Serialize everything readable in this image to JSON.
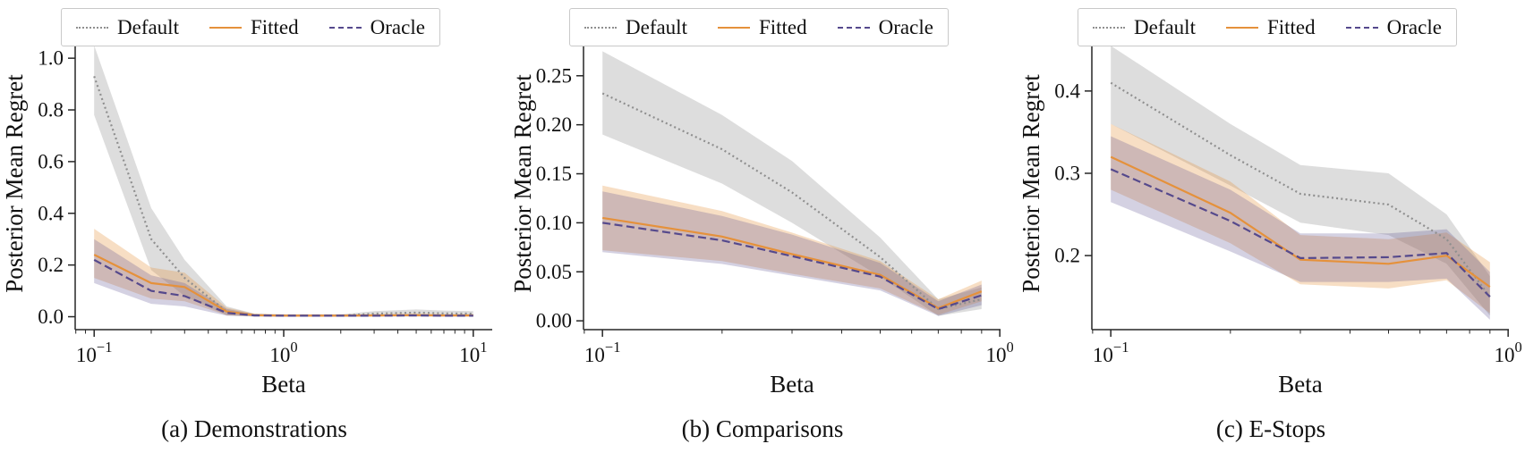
{
  "figure": {
    "background": "#ffffff",
    "spine_color": "#262626",
    "legend_entries": [
      "Default",
      "Fitted",
      "Oracle"
    ]
  },
  "chart_data": [
    {
      "type": "line",
      "title": "(a) Demonstrations",
      "xlabel": "Beta",
      "ylabel": "Posterior Mean Regret",
      "xscale": "log",
      "xlim": [
        0.0794,
        12.59
      ],
      "ylim": [
        -0.05,
        1.08
      ],
      "xticks": [
        {
          "value": 0.1,
          "base": "10",
          "exp": "−1",
          "label": "10^-1"
        },
        {
          "value": 1,
          "base": "10",
          "exp": "0",
          "label": "10^0"
        },
        {
          "value": 10,
          "base": "10",
          "exp": "1",
          "label": "10^1"
        }
      ],
      "yticks": [
        0.0,
        0.2,
        0.4,
        0.6,
        0.8,
        1.0
      ],
      "ytick_labels": [
        "0.0",
        "0.2",
        "0.4",
        "0.6",
        "0.8",
        "1.0"
      ],
      "x": [
        0.1,
        0.2,
        0.3,
        0.5,
        0.7,
        1,
        2,
        3,
        5,
        7,
        10
      ],
      "series": [
        {
          "name": "Default",
          "style": "dotted",
          "color": "#8f8f8f",
          "band_opacity": 0.3,
          "values": [
            0.93,
            0.3,
            0.15,
            0.02,
            0.006,
            0.004,
            0.004,
            0.012,
            0.016,
            0.013,
            0.012
          ],
          "lower": [
            0.78,
            0.18,
            0.08,
            0.005,
            0.001,
            0.001,
            0.001,
            0.004,
            0.006,
            0.004,
            0.004
          ],
          "upper": [
            1.05,
            0.42,
            0.22,
            0.04,
            0.012,
            0.009,
            0.009,
            0.022,
            0.028,
            0.024,
            0.022
          ]
        },
        {
          "name": "Fitted",
          "style": "solid",
          "color": "#e5913b",
          "band_opacity": 0.3,
          "values": [
            0.24,
            0.13,
            0.115,
            0.02,
            0.006,
            0.004,
            0.004,
            0.005,
            0.006,
            0.005,
            0.005
          ],
          "lower": [
            0.15,
            0.07,
            0.06,
            0.006,
            0.001,
            0.001,
            0.001,
            0.001,
            0.001,
            0.001,
            0.001
          ],
          "upper": [
            0.34,
            0.19,
            0.17,
            0.035,
            0.012,
            0.009,
            0.009,
            0.01,
            0.012,
            0.01,
            0.01
          ]
        },
        {
          "name": "Oracle",
          "style": "dashed",
          "color": "#55498c",
          "band_opacity": 0.25,
          "values": [
            0.22,
            0.1,
            0.08,
            0.015,
            0.005,
            0.004,
            0.004,
            0.004,
            0.005,
            0.004,
            0.004
          ],
          "lower": [
            0.13,
            0.05,
            0.04,
            0.004,
            0.001,
            0.001,
            0.001,
            0.001,
            0.001,
            0.001,
            0.001
          ],
          "upper": [
            0.3,
            0.16,
            0.13,
            0.03,
            0.01,
            0.008,
            0.008,
            0.008,
            0.01,
            0.008,
            0.008
          ]
        }
      ]
    },
    {
      "type": "line",
      "title": "(b) Comparisons",
      "xlabel": "Beta",
      "ylabel": "Posterior Mean Regret",
      "xscale": "log",
      "xlim": [
        0.0896,
        1.0044
      ],
      "ylim": [
        -0.009,
        0.289
      ],
      "xticks": [
        {
          "value": 0.1,
          "base": "10",
          "exp": "−1",
          "label": "10^-1"
        },
        {
          "value": 1,
          "base": "10",
          "exp": "0",
          "label": "10^0"
        }
      ],
      "yticks": [
        0.0,
        0.05,
        0.1,
        0.15,
        0.2,
        0.25
      ],
      "ytick_labels": [
        "0.00",
        "0.05",
        "0.10",
        "0.15",
        "0.20",
        "0.25"
      ],
      "x": [
        0.1,
        0.2,
        0.3,
        0.5,
        0.7,
        0.9
      ],
      "series": [
        {
          "name": "Default",
          "style": "dotted",
          "color": "#8f8f8f",
          "band_opacity": 0.3,
          "values": [
            0.232,
            0.175,
            0.131,
            0.065,
            0.012,
            0.022
          ],
          "lower": [
            0.19,
            0.14,
            0.1,
            0.045,
            0.005,
            0.012
          ],
          "upper": [
            0.275,
            0.21,
            0.163,
            0.085,
            0.022,
            0.034
          ]
        },
        {
          "name": "Fitted",
          "style": "solid",
          "color": "#e5913b",
          "band_opacity": 0.3,
          "values": [
            0.105,
            0.086,
            0.068,
            0.047,
            0.013,
            0.03
          ],
          "lower": [
            0.072,
            0.061,
            0.048,
            0.033,
            0.006,
            0.02
          ],
          "upper": [
            0.138,
            0.112,
            0.09,
            0.061,
            0.022,
            0.041
          ]
        },
        {
          "name": "Oracle",
          "style": "dashed",
          "color": "#55498c",
          "band_opacity": 0.25,
          "values": [
            0.1,
            0.082,
            0.066,
            0.045,
            0.012,
            0.026
          ],
          "lower": [
            0.07,
            0.058,
            0.046,
            0.031,
            0.005,
            0.016
          ],
          "upper": [
            0.132,
            0.107,
            0.088,
            0.059,
            0.02,
            0.037
          ]
        }
      ]
    },
    {
      "type": "line",
      "title": "(c) E-Stops",
      "xlabel": "Beta",
      "ylabel": "Posterior Mean Regret",
      "xscale": "log",
      "xlim": [
        0.0896,
        1.0044
      ],
      "ylim": [
        0.11,
        0.465
      ],
      "xticks": [
        {
          "value": 0.1,
          "base": "10",
          "exp": "−1",
          "label": "10^-1"
        },
        {
          "value": 1,
          "base": "10",
          "exp": "0",
          "label": "10^0"
        }
      ],
      "yticks": [
        0.2,
        0.3,
        0.4
      ],
      "ytick_labels": [
        "0.2",
        "0.3",
        "0.4"
      ],
      "x": [
        0.1,
        0.2,
        0.3,
        0.5,
        0.7,
        0.9
      ],
      "series": [
        {
          "name": "Default",
          "style": "dotted",
          "color": "#8f8f8f",
          "band_opacity": 0.3,
          "values": [
            0.41,
            0.322,
            0.275,
            0.262,
            0.22,
            0.15
          ],
          "lower": [
            0.36,
            0.285,
            0.24,
            0.225,
            0.19,
            0.127
          ],
          "upper": [
            0.455,
            0.36,
            0.31,
            0.3,
            0.25,
            0.175
          ]
        },
        {
          "name": "Fitted",
          "style": "solid",
          "color": "#e5913b",
          "band_opacity": 0.3,
          "values": [
            0.32,
            0.252,
            0.195,
            0.19,
            0.2,
            0.162
          ],
          "lower": [
            0.28,
            0.215,
            0.165,
            0.16,
            0.17,
            0.13
          ],
          "upper": [
            0.36,
            0.29,
            0.225,
            0.22,
            0.228,
            0.192
          ]
        },
        {
          "name": "Oracle",
          "style": "dashed",
          "color": "#55498c",
          "band_opacity": 0.25,
          "values": [
            0.305,
            0.242,
            0.197,
            0.198,
            0.203,
            0.15
          ],
          "lower": [
            0.265,
            0.205,
            0.168,
            0.168,
            0.172,
            0.122
          ],
          "upper": [
            0.345,
            0.28,
            0.227,
            0.227,
            0.232,
            0.18
          ]
        }
      ]
    }
  ]
}
